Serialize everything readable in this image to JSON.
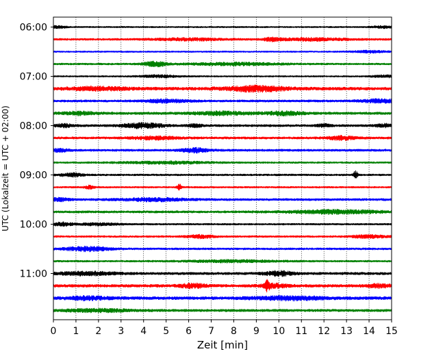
{
  "chart_data": {
    "type": "line",
    "subtype": "helicorder",
    "xlabel": "Zeit  [min]",
    "ylabel": "UTC (Lokalzeit = UTC + 02:00)",
    "xlim": [
      0,
      15
    ],
    "xticks": [
      0,
      1,
      2,
      3,
      4,
      5,
      6,
      7,
      8,
      9,
      10,
      11,
      12,
      13,
      14,
      15
    ],
    "grid": "vertical dotted lines at every minute",
    "trace_interval_minutes": 15,
    "start_time": "06:00",
    "end_time": "12:00",
    "yticks": [
      "06:00",
      "07:00",
      "08:00",
      "09:00",
      "10:00",
      "11:00"
    ],
    "colors": [
      "#000000",
      "#ff0000",
      "#0000ff",
      "#008000"
    ],
    "series": [
      {
        "start": "06:00",
        "color": "#000000",
        "noise": 1.0,
        "bursts": [
          [
            0.2,
            0.4,
            1.6
          ],
          [
            14.6,
            0.5,
            1.4
          ]
        ]
      },
      {
        "start": "06:15",
        "color": "#ff0000",
        "noise": 1.4,
        "bursts": [
          [
            6.0,
            1.5,
            1.6
          ],
          [
            9.7,
            0.4,
            2.0
          ],
          [
            11.5,
            1.5,
            1.8
          ]
        ]
      },
      {
        "start": "06:30",
        "color": "#0000ff",
        "noise": 1.0,
        "bursts": [
          [
            14.0,
            0.8,
            1.5
          ]
        ]
      },
      {
        "start": "06:45",
        "color": "#008000",
        "noise": 1.3,
        "bursts": [
          [
            4.5,
            0.5,
            3.5
          ],
          [
            8.0,
            2.0,
            1.8
          ]
        ]
      },
      {
        "start": "07:00",
        "color": "#000000",
        "noise": 1.0,
        "bursts": [
          [
            4.7,
            0.9,
            1.7
          ],
          [
            14.7,
            0.6,
            1.5
          ]
        ]
      },
      {
        "start": "07:15",
        "color": "#ff0000",
        "noise": 2.2,
        "bursts": [
          [
            2.0,
            1.2,
            2.0
          ],
          [
            9.0,
            1.3,
            3.5
          ]
        ]
      },
      {
        "start": "07:30",
        "color": "#0000ff",
        "noise": 1.6,
        "bursts": [
          [
            5.0,
            1.0,
            2.0
          ],
          [
            14.5,
            0.8,
            2.2
          ]
        ]
      },
      {
        "start": "07:45",
        "color": "#008000",
        "noise": 1.8,
        "bursts": [
          [
            1.2,
            0.7,
            2.0
          ],
          [
            7.5,
            1.3,
            2.0
          ],
          [
            10.3,
            0.8,
            2.5
          ]
        ]
      },
      {
        "start": "08:00",
        "color": "#000000",
        "noise": 1.6,
        "bursts": [
          [
            0.5,
            0.4,
            2.0
          ],
          [
            4.0,
            0.9,
            3.5
          ],
          [
            6.3,
            0.3,
            2.0
          ],
          [
            12.0,
            0.3,
            2.0
          ],
          [
            14.7,
            0.4,
            2.0
          ]
        ]
      },
      {
        "start": "08:15",
        "color": "#ff0000",
        "noise": 1.6,
        "bursts": [
          [
            4.5,
            1.0,
            2.0
          ],
          [
            12.8,
            0.6,
            2.5
          ]
        ]
      },
      {
        "start": "08:30",
        "color": "#0000ff",
        "noise": 1.6,
        "bursts": [
          [
            0.3,
            0.4,
            2.0
          ],
          [
            6.3,
            0.6,
            3.0
          ]
        ]
      },
      {
        "start": "08:45",
        "color": "#008000",
        "noise": 1.2,
        "bursts": [
          [
            5.0,
            2.0,
            1.6
          ]
        ]
      },
      {
        "start": "09:00",
        "color": "#000000",
        "noise": 1.3,
        "bursts": [
          [
            0.8,
            0.5,
            2.5
          ],
          [
            13.4,
            0.1,
            5.0
          ]
        ]
      },
      {
        "start": "09:15",
        "color": "#ff0000",
        "noise": 1.2,
        "bursts": [
          [
            1.6,
            0.2,
            2.5
          ],
          [
            5.6,
            0.1,
            4.0
          ]
        ]
      },
      {
        "start": "09:30",
        "color": "#0000ff",
        "noise": 1.6,
        "bursts": [
          [
            0.3,
            0.4,
            2.0
          ],
          [
            4.5,
            1.5,
            2.0
          ]
        ]
      },
      {
        "start": "09:45",
        "color": "#008000",
        "noise": 1.6,
        "bursts": [
          [
            12.5,
            2.0,
            2.5
          ]
        ]
      },
      {
        "start": "10:00",
        "color": "#000000",
        "noise": 1.2,
        "bursts": [
          [
            0.4,
            0.4,
            2.5
          ],
          [
            2.0,
            1.0,
            1.5
          ]
        ]
      },
      {
        "start": "10:15",
        "color": "#ff0000",
        "noise": 1.3,
        "bursts": [
          [
            6.5,
            0.6,
            2.2
          ],
          [
            14.0,
            0.8,
            2.0
          ]
        ]
      },
      {
        "start": "10:30",
        "color": "#0000ff",
        "noise": 1.4,
        "bursts": [
          [
            1.5,
            1.0,
            3.0
          ]
        ]
      },
      {
        "start": "10:45",
        "color": "#008000",
        "noise": 1.3,
        "bursts": [
          [
            8.0,
            2.0,
            1.5
          ]
        ]
      },
      {
        "start": "11:00",
        "color": "#000000",
        "noise": 1.8,
        "bursts": [
          [
            1.5,
            1.2,
            2.2
          ],
          [
            10.0,
            0.6,
            3.0
          ]
        ]
      },
      {
        "start": "11:15",
        "color": "#ff0000",
        "noise": 2.0,
        "bursts": [
          [
            6.2,
            0.6,
            2.5
          ],
          [
            9.5,
            0.1,
            7.0
          ],
          [
            9.8,
            0.6,
            2.5
          ],
          [
            14.5,
            0.6,
            2.0
          ]
        ]
      },
      {
        "start": "11:30",
        "color": "#0000ff",
        "noise": 2.2,
        "bursts": [
          [
            1.5,
            0.8,
            2.0
          ],
          [
            10.5,
            1.5,
            2.2
          ]
        ]
      },
      {
        "start": "11:45",
        "color": "#008000",
        "noise": 1.8,
        "bursts": [
          [
            2.0,
            1.5,
            1.8
          ]
        ]
      }
    ]
  }
}
